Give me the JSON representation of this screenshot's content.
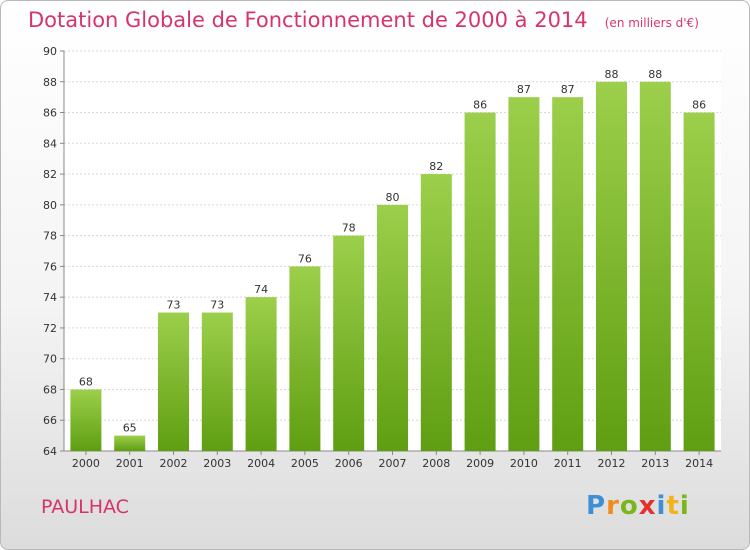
{
  "title": "Dotation Globale de Fonctionnement de 2000 à 2014",
  "subtitle": "(en milliers d'€)",
  "commune": "PAULHAC",
  "logo": {
    "letters": [
      "P",
      "r",
      "o",
      "x",
      "i",
      "t",
      "i"
    ],
    "colors": [
      "#3f8fd6",
      "#f08c1a",
      "#7ab51d",
      "#e0332e",
      "#3f8fd6",
      "#f0b41a",
      "#7ab51d"
    ]
  },
  "colors": {
    "bar_top": "#9ccf4b",
    "bar_bottom": "#5f9e12",
    "title": "#d7356a"
  },
  "chart_data": {
    "type": "bar",
    "title": "Dotation Globale de Fonctionnement de 2000 à 2014",
    "categories": [
      "2000",
      "2001",
      "2002",
      "2003",
      "2004",
      "2005",
      "2006",
      "2007",
      "2008",
      "2009",
      "2010",
      "2011",
      "2012",
      "2013",
      "2014"
    ],
    "values": [
      68,
      65,
      73,
      73,
      74,
      76,
      78,
      80,
      82,
      86,
      87,
      87,
      88,
      88,
      86
    ],
    "ylim": [
      64,
      90
    ],
    "yticks": [
      64,
      66,
      68,
      70,
      72,
      74,
      76,
      78,
      80,
      82,
      84,
      86,
      88,
      90
    ],
    "grid": true,
    "xlabel": "",
    "ylabel": ""
  }
}
